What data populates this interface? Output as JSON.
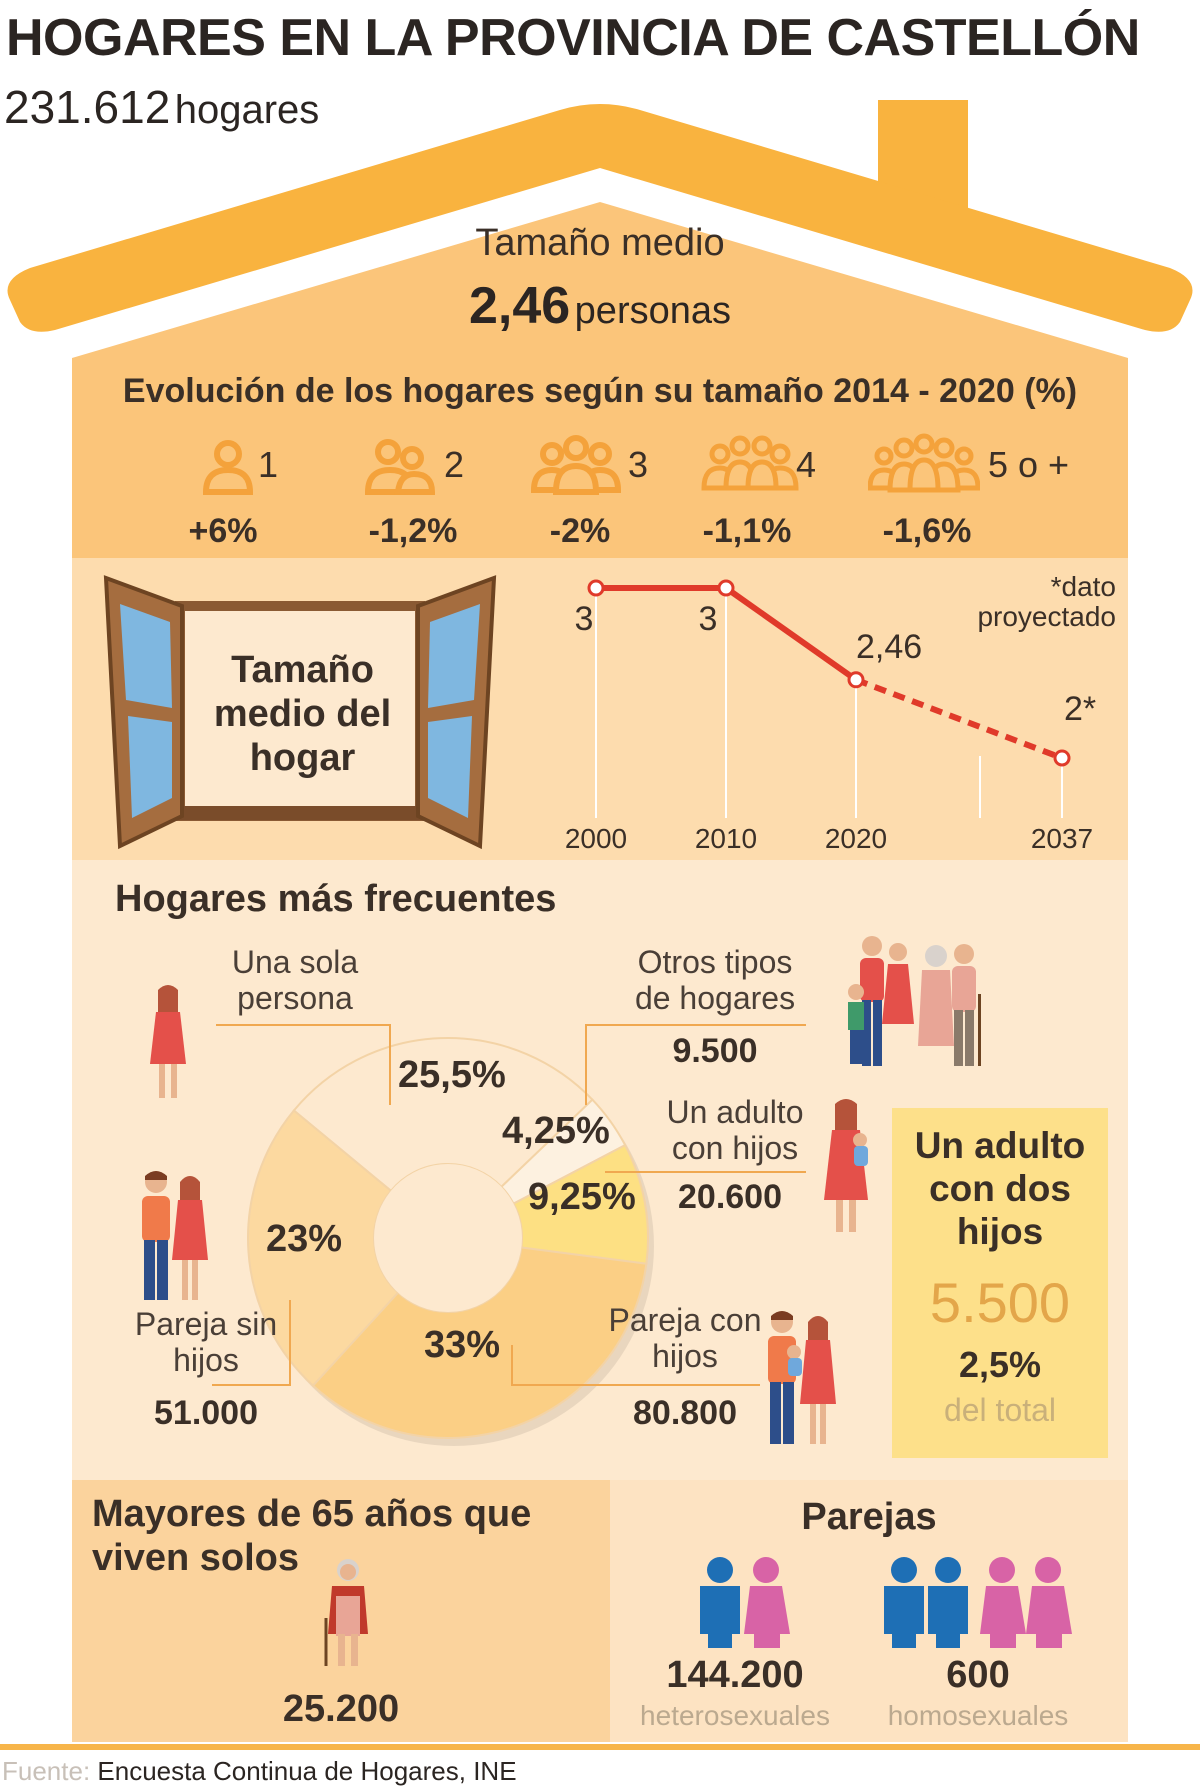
{
  "header": {
    "title": "HOGARES EN LA PROVINCIA DE CASTELLÓN",
    "total_number": "231.612",
    "total_unit": "hogares"
  },
  "roof": {
    "label": "Tamaño medio",
    "value": "2,46",
    "unit": "personas"
  },
  "evolution": {
    "title": "Evolución de los hogares según su tamaño 2014 - 2020 (%)",
    "items": [
      {
        "label": "1",
        "pct": "+6%",
        "icon": "one-person-icon"
      },
      {
        "label": "2",
        "pct": "-1,2%",
        "icon": "two-persons-icon"
      },
      {
        "label": "3",
        "pct": "-2%",
        "icon": "three-persons-icon"
      },
      {
        "label": "4",
        "pct": "-1,1%",
        "icon": "four-persons-icon"
      },
      {
        "label": "5 o +",
        "pct": "-1,6%",
        "icon": "five-persons-icon"
      }
    ]
  },
  "size_chart": {
    "window_label": "Tamaño medio del hogar",
    "note": "*dato proyectado"
  },
  "chart_data": {
    "type": "line",
    "x": [
      "2000",
      "2010",
      "2020",
      "2037"
    ],
    "values": [
      3,
      3,
      2.46,
      2
    ],
    "data_labels": [
      "3",
      "3",
      "2,46",
      "2*"
    ],
    "projected_from_index": 2,
    "line_color": "#e03a2a"
  },
  "frequent": {
    "title": "Hogares más frecuentes",
    "segments": [
      {
        "pct": "25,5%",
        "value": 25.5,
        "label": "Una sola persona",
        "count": "",
        "color": "#fde9cf"
      },
      {
        "pct": "4,25%",
        "value": 4.25,
        "label": "Otros tipos de hogares",
        "count": "9.500",
        "color": "#fdf1e0"
      },
      {
        "pct": "9,25%",
        "value": 9.25,
        "label": "Un adulto con hijos",
        "count": "20.600",
        "color": "#fde083"
      },
      {
        "pct": "33%",
        "value": 33,
        "label": "Pareja con hijos",
        "count": "80.800",
        "color": "#fbcf85"
      },
      {
        "pct": "23%",
        "value": 23,
        "label": "Pareja sin hijos",
        "count": "51.000",
        "color": "#fcd9a0"
      }
    ],
    "box": {
      "title": "Un adulto con dos hijos",
      "number": "5.500",
      "pct": "2,5%",
      "note": "del total"
    }
  },
  "elderly": {
    "title": "Mayores de 65 años que viven solos",
    "value": "25.200"
  },
  "couples": {
    "title": "Parejas",
    "hetero_value": "144.200",
    "hetero_label": "heterosexuales",
    "homo_value": "600",
    "homo_label": "homosexuales"
  },
  "source": {
    "label": "Fuente:",
    "text": "Encuesta Continua de Hogares, INE"
  },
  "colors": {
    "roof": "#f9b33f",
    "accent_line": "#e03a2a",
    "icon_orange": "#f4a23b",
    "male_blue": "#1e6fb5",
    "female_pink": "#d863a6"
  }
}
